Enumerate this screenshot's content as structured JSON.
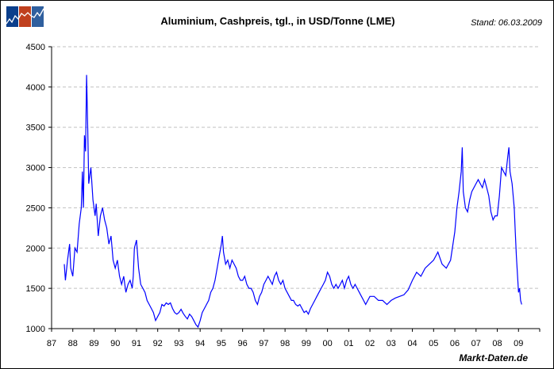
{
  "chart_data": {
    "type": "line",
    "title": "Aluminium, Cashpreis, tgl., in USD/Tonne (LME)",
    "annotation": "Stand: 06.03.2009",
    "source": "Markt-Daten.de",
    "xlabel": "",
    "ylabel": "",
    "xlim": [
      1987,
      2010
    ],
    "ylim": [
      1000,
      4500
    ],
    "grid": true,
    "line_color": "#0000ff",
    "x_tick_labels": [
      "87",
      "88",
      "89",
      "90",
      "91",
      "92",
      "93",
      "94",
      "95",
      "96",
      "97",
      "98",
      "99",
      "00",
      "01",
      "02",
      "03",
      "04",
      "05",
      "06",
      "07",
      "08",
      "09"
    ],
    "y_tick_labels": [
      "1000",
      "1500",
      "2000",
      "2500",
      "3000",
      "3500",
      "4000",
      "4500"
    ],
    "series": [
      {
        "x": [
          1987.6,
          1987.65,
          1987.75,
          1987.85,
          1987.9,
          1988.0,
          1988.1,
          1988.2,
          1988.3,
          1988.4,
          1988.45,
          1988.5,
          1988.55,
          1988.6,
          1988.65,
          1988.7,
          1988.75,
          1988.85,
          1988.95,
          1989.05,
          1989.1,
          1989.2,
          1989.3,
          1989.4,
          1989.5,
          1989.6,
          1989.7,
          1989.8,
          1989.9,
          1990.0,
          1990.1,
          1990.2,
          1990.3,
          1990.4,
          1990.5,
          1990.6,
          1990.7,
          1990.8,
          1990.85,
          1990.9,
          1991.0,
          1991.1,
          1991.2,
          1991.3,
          1991.4,
          1991.5,
          1991.6,
          1991.7,
          1991.8,
          1991.9,
          1992.0,
          1992.1,
          1992.2,
          1992.3,
          1992.4,
          1992.5,
          1992.6,
          1992.7,
          1992.8,
          1992.9,
          1993.0,
          1993.1,
          1993.2,
          1993.3,
          1993.4,
          1993.5,
          1993.6,
          1993.7,
          1993.8,
          1993.9,
          1994.0,
          1994.1,
          1994.2,
          1994.3,
          1994.4,
          1994.5,
          1994.6,
          1994.7,
          1994.8,
          1994.9,
          1995.0,
          1995.05,
          1995.1,
          1995.2,
          1995.3,
          1995.4,
          1995.5,
          1995.6,
          1995.7,
          1995.8,
          1995.9,
          1996.0,
          1996.1,
          1996.2,
          1996.3,
          1996.4,
          1996.5,
          1996.6,
          1996.7,
          1996.8,
          1996.9,
          1997.0,
          1997.1,
          1997.2,
          1997.3,
          1997.4,
          1997.5,
          1997.6,
          1997.7,
          1997.8,
          1997.9,
          1998.0,
          1998.1,
          1998.2,
          1998.3,
          1998.4,
          1998.5,
          1998.6,
          1998.7,
          1998.8,
          1998.9,
          1999.0,
          1999.1,
          1999.2,
          1999.3,
          1999.4,
          1999.5,
          1999.6,
          1999.7,
          1999.8,
          1999.9,
          2000.0,
          2000.1,
          2000.2,
          2000.3,
          2000.4,
          2000.5,
          2000.6,
          2000.7,
          2000.8,
          2000.9,
          2001.0,
          2001.1,
          2001.2,
          2001.3,
          2001.4,
          2001.5,
          2001.6,
          2001.7,
          2001.8,
          2001.9,
          2002.0,
          2002.2,
          2002.4,
          2002.6,
          2002.8,
          2003.0,
          2003.2,
          2003.4,
          2003.6,
          2003.8,
          2004.0,
          2004.2,
          2004.4,
          2004.6,
          2004.8,
          2005.0,
          2005.2,
          2005.4,
          2005.6,
          2005.8,
          2006.0,
          2006.1,
          2006.2,
          2006.3,
          2006.35,
          2006.4,
          2006.5,
          2006.6,
          2006.7,
          2006.8,
          2007.0,
          2007.1,
          2007.2,
          2007.3,
          2007.4,
          2007.5,
          2007.6,
          2007.7,
          2007.8,
          2007.9,
          2008.0,
          2008.1,
          2008.2,
          2008.3,
          2008.4,
          2008.5,
          2008.55,
          2008.6,
          2008.7,
          2008.8,
          2008.85,
          2008.9,
          2009.0,
          2009.05,
          2009.1,
          2009.15
        ],
        "y": [
          1800,
          1600,
          1850,
          2050,
          1750,
          1650,
          2000,
          1950,
          2300,
          2500,
          2950,
          2500,
          3400,
          3200,
          4150,
          3500,
          2800,
          3000,
          2600,
          2400,
          2550,
          2150,
          2400,
          2500,
          2350,
          2250,
          2050,
          2150,
          1850,
          1750,
          1850,
          1650,
          1550,
          1650,
          1450,
          1550,
          1600,
          1500,
          1650,
          2000,
          2100,
          1750,
          1550,
          1500,
          1450,
          1350,
          1300,
          1250,
          1200,
          1100,
          1150,
          1200,
          1300,
          1280,
          1320,
          1300,
          1320,
          1250,
          1200,
          1180,
          1200,
          1240,
          1190,
          1150,
          1120,
          1180,
          1150,
          1100,
          1050,
          1020,
          1100,
          1200,
          1250,
          1300,
          1350,
          1450,
          1500,
          1600,
          1750,
          1900,
          2050,
          2150,
          1950,
          1800,
          1850,
          1750,
          1850,
          1800,
          1750,
          1650,
          1600,
          1600,
          1650,
          1550,
          1500,
          1500,
          1450,
          1350,
          1300,
          1400,
          1450,
          1550,
          1600,
          1650,
          1600,
          1550,
          1650,
          1700,
          1600,
          1550,
          1600,
          1500,
          1450,
          1400,
          1350,
          1350,
          1300,
          1280,
          1300,
          1250,
          1200,
          1220,
          1180,
          1250,
          1300,
          1350,
          1400,
          1450,
          1500,
          1550,
          1600,
          1700,
          1650,
          1550,
          1500,
          1550,
          1500,
          1550,
          1600,
          1500,
          1600,
          1650,
          1550,
          1500,
          1550,
          1500,
          1450,
          1400,
          1350,
          1300,
          1350,
          1400,
          1400,
          1350,
          1350,
          1300,
          1350,
          1380,
          1400,
          1420,
          1480,
          1600,
          1700,
          1650,
          1750,
          1800,
          1850,
          1950,
          1800,
          1750,
          1850,
          2200,
          2500,
          2700,
          2950,
          3250,
          2700,
          2500,
          2450,
          2600,
          2700,
          2800,
          2850,
          2800,
          2750,
          2850,
          2750,
          2650,
          2450,
          2350,
          2400,
          2400,
          2650,
          3000,
          2950,
          2900,
          3150,
          3250,
          2950,
          2800,
          2500,
          2200,
          1900,
          1450,
          1500,
          1350,
          1300
        ]
      }
    ]
  },
  "logo": {
    "colors": [
      "#0b3f8c",
      "#c0401e",
      "#2f5f9e"
    ]
  }
}
